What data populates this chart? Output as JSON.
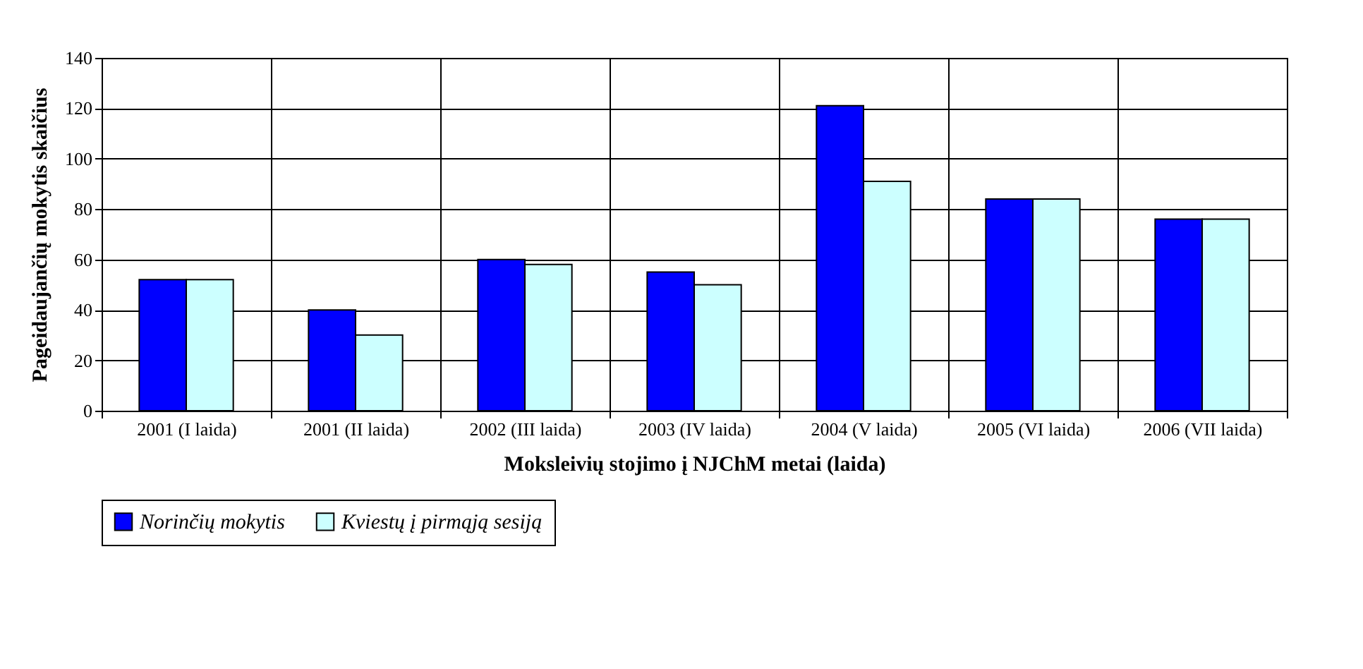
{
  "chart_data": {
    "type": "bar",
    "xlabel": "Moksleivių stojimo į NJChM metai (laida)",
    "ylabel": "Pageidaujančių mokytis skaičius",
    "categories": [
      "2001 (I laida)",
      "2001 (II laida)",
      "2002 (III laida)",
      "2003 (IV laida)",
      "2004 (V laida)",
      "2005 (VI laida)",
      "2006 (VII laida)"
    ],
    "series": [
      {
        "name": "Norinčių mokytis",
        "color": "#0000ff",
        "values": [
          52,
          40,
          60,
          55,
          121,
          84,
          76
        ]
      },
      {
        "name": "Kviestų į pirmąją sesiją",
        "color": "#ccffff",
        "values": [
          52,
          30,
          58,
          50,
          91,
          84,
          76
        ]
      }
    ],
    "ylim": [
      0,
      140
    ],
    "yticks": [
      0,
      20,
      40,
      60,
      80,
      100,
      120,
      140
    ],
    "grid": true,
    "legend": "bottom"
  }
}
